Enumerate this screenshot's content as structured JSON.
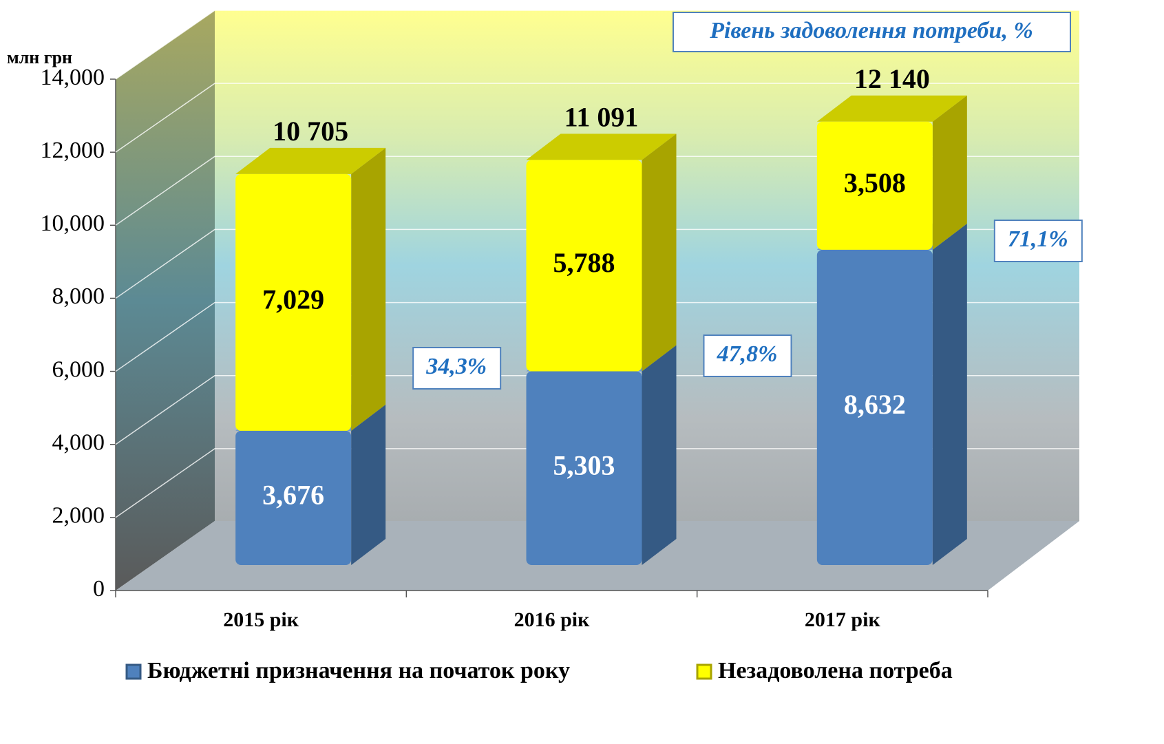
{
  "chart_data": {
    "type": "bar",
    "stacked": true,
    "y_label": "млн грн",
    "categories": [
      "2015 рік",
      "2016 рік",
      "2017 рік"
    ],
    "series": [
      {
        "name": "Бюджетні призначення на початок року",
        "color": "#4f81bd",
        "values": [
          3676,
          5303,
          8632
        ],
        "value_labels": [
          "3,676",
          "5,303",
          "8,632"
        ]
      },
      {
        "name": "Незадоволена потреба",
        "color": "#ffff00",
        "values": [
          7029,
          5788,
          3508
        ],
        "value_labels": [
          "7,029",
          "5,788",
          "3,508"
        ]
      }
    ],
    "totals": {
      "values": [
        10705,
        11091,
        12140
      ],
      "value_labels": [
        "10 705",
        "11 091",
        "12 140"
      ]
    },
    "ratio": {
      "title": "Рівень задоволення потреби, %",
      "values": [
        34.3,
        47.8,
        71.1
      ],
      "value_labels": [
        "34,3%",
        "47,8%",
        "71,1%"
      ]
    },
    "ylim": [
      0,
      14000
    ],
    "yticks": [
      0,
      {
        "value": 2000,
        "label": "2,000"
      },
      {
        "value": 4000,
        "label": "4,000"
      },
      {
        "value": 6000,
        "label": "6,000"
      },
      {
        "value": 8000,
        "label": "8,000"
      },
      {
        "value": 10000,
        "label": "10,000"
      },
      {
        "value": 12000,
        "label": "12,000"
      },
      {
        "value": 14000,
        "label": "14,000"
      }
    ],
    "grid": true
  }
}
